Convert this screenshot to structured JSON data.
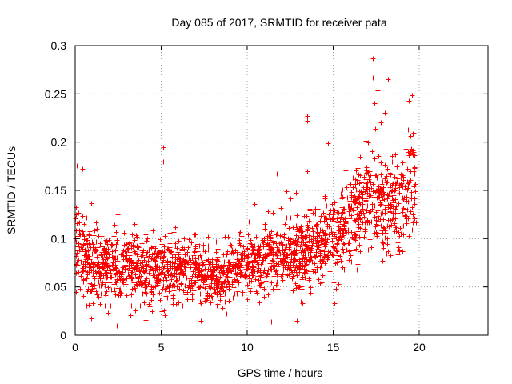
{
  "chart_data": {
    "type": "scatter",
    "title": "Day 085 of 2017, SRMTID for receiver pata",
    "xlabel": "GPS time / hours",
    "ylabel": "SRMTID / TECUs",
    "xlim": [
      0,
      24
    ],
    "ylim": [
      0,
      0.3
    ],
    "xticks": [
      0,
      5,
      10,
      15,
      20
    ],
    "xtick_labels": [
      "0",
      "5",
      "10",
      "15",
      "20"
    ],
    "yticks": [
      0,
      0.05,
      0.1,
      0.15,
      0.2,
      0.25,
      0.3
    ],
    "ytick_labels": [
      "0",
      "0.05",
      "0.1",
      "0.15",
      "0.2",
      "0.25",
      "0.3"
    ],
    "grid": true,
    "marker": "+",
    "marker_color": "#ff0000",
    "series": [
      {
        "name": "pata",
        "trend": [
          [
            0.0,
            0.095,
            0.025
          ],
          [
            0.5,
            0.085,
            0.025
          ],
          [
            1.0,
            0.075,
            0.022
          ],
          [
            2.0,
            0.07,
            0.022
          ],
          [
            3.0,
            0.072,
            0.022
          ],
          [
            4.0,
            0.068,
            0.022
          ],
          [
            5.0,
            0.068,
            0.022
          ],
          [
            6.0,
            0.07,
            0.02
          ],
          [
            7.0,
            0.068,
            0.018
          ],
          [
            8.0,
            0.06,
            0.016
          ],
          [
            9.0,
            0.068,
            0.018
          ],
          [
            10.0,
            0.075,
            0.02
          ],
          [
            11.0,
            0.08,
            0.022
          ],
          [
            12.0,
            0.085,
            0.022
          ],
          [
            13.0,
            0.08,
            0.025
          ],
          [
            14.0,
            0.09,
            0.025
          ],
          [
            15.0,
            0.1,
            0.025
          ],
          [
            16.0,
            0.12,
            0.025
          ],
          [
            17.0,
            0.145,
            0.03
          ],
          [
            18.0,
            0.135,
            0.03
          ],
          [
            19.0,
            0.14,
            0.035
          ],
          [
            19.5,
            0.16,
            0.03
          ],
          [
            19.8,
            0.15,
            0.03
          ]
        ],
        "count": 2100,
        "x_range": [
          0.0,
          19.8
        ],
        "outliers": [
          [
            17.3,
            0.287
          ],
          [
            17.3,
            0.267
          ],
          [
            18.2,
            0.265
          ],
          [
            17.6,
            0.254
          ],
          [
            17.4,
            0.24
          ],
          [
            19.6,
            0.249
          ],
          [
            19.4,
            0.243
          ],
          [
            18.0,
            0.23
          ],
          [
            13.5,
            0.227
          ],
          [
            13.5,
            0.222
          ],
          [
            5.1,
            0.195
          ],
          [
            5.1,
            0.18
          ],
          [
            14.7,
            0.199
          ],
          [
            0.1,
            0.176
          ],
          [
            0.4,
            0.172
          ],
          [
            2.4,
            0.01
          ],
          [
            11.4,
            0.014
          ],
          [
            4.1,
            0.016
          ],
          [
            5.2,
            0.021
          ],
          [
            3.2,
            0.021
          ],
          [
            11.7,
            0.167
          ],
          [
            13.5,
            0.17
          ],
          [
            8.8,
            0.022
          ],
          [
            1.0,
            0.033
          ]
        ]
      }
    ]
  }
}
